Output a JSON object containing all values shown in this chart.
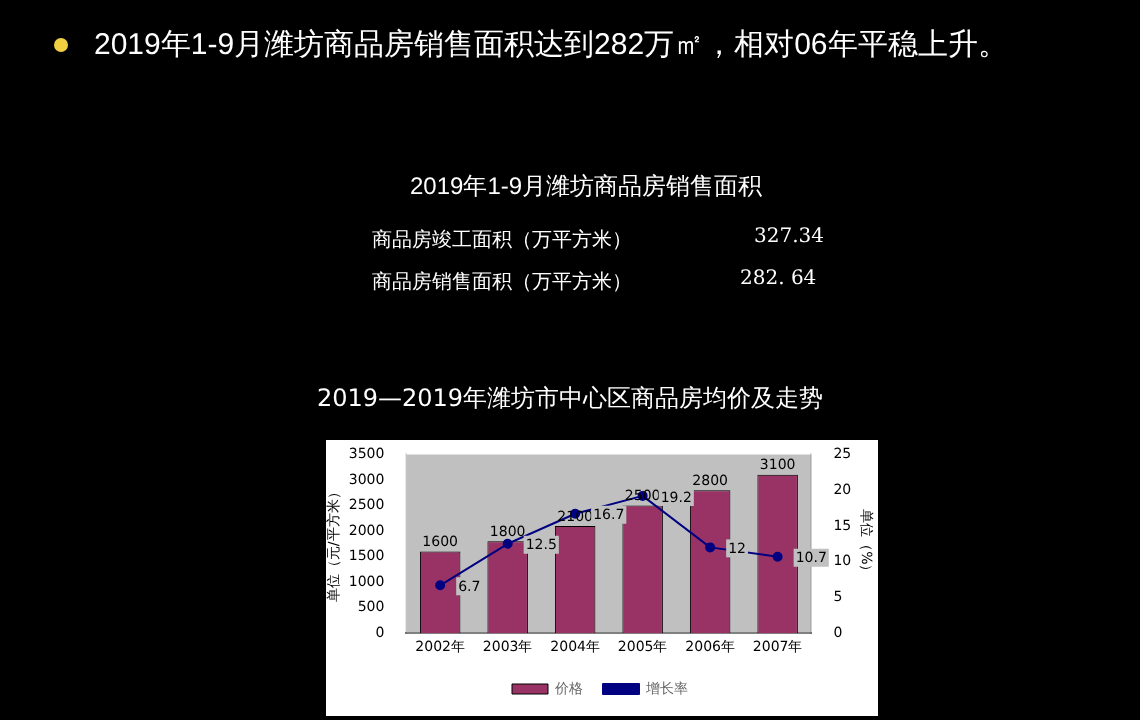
{
  "chart_data": {
    "type": "bar",
    "title": "2019—2019年潍坊市中心区商品房均价及走势",
    "annotations": [
      "2019年1-9月潍坊商品房销售面积达到282万㎡，相对06年平稳上升。",
      "2019年1-9月潍坊商品房销售面积",
      "商品房竣工面积（万平方米）",
      "327.34",
      "商品房销售面积（万平方米）",
      "282. 64"
    ],
    "categories": [
      "2002年",
      "2003年",
      "2004年",
      "2005年",
      "2006年",
      "2007年"
    ],
    "series": [
      {
        "name": "价格",
        "color": "#993366",
        "values": [
          1600,
          1800,
          2100,
          2500,
          2800,
          3100
        ]
      },
      {
        "name": "增长率",
        "type": "line",
        "axis": "y2",
        "color": "#000080",
        "values": [
          6.7,
          12.5,
          16.7,
          19.2,
          12,
          10.7
        ]
      }
    ],
    "ylabel": "单位（元/平方米）",
    "y2label": "单位（%）",
    "ylim": [
      0,
      3500
    ],
    "yticks": [
      0,
      500,
      1000,
      1500,
      2000,
      2500,
      3000,
      3500
    ],
    "y2lim": [
      0,
      25
    ],
    "y2ticks": [
      0,
      5,
      10,
      15,
      20,
      25
    ],
    "legend": "bottom",
    "data_labels": true,
    "marker": "circle",
    "grid": false
  }
}
